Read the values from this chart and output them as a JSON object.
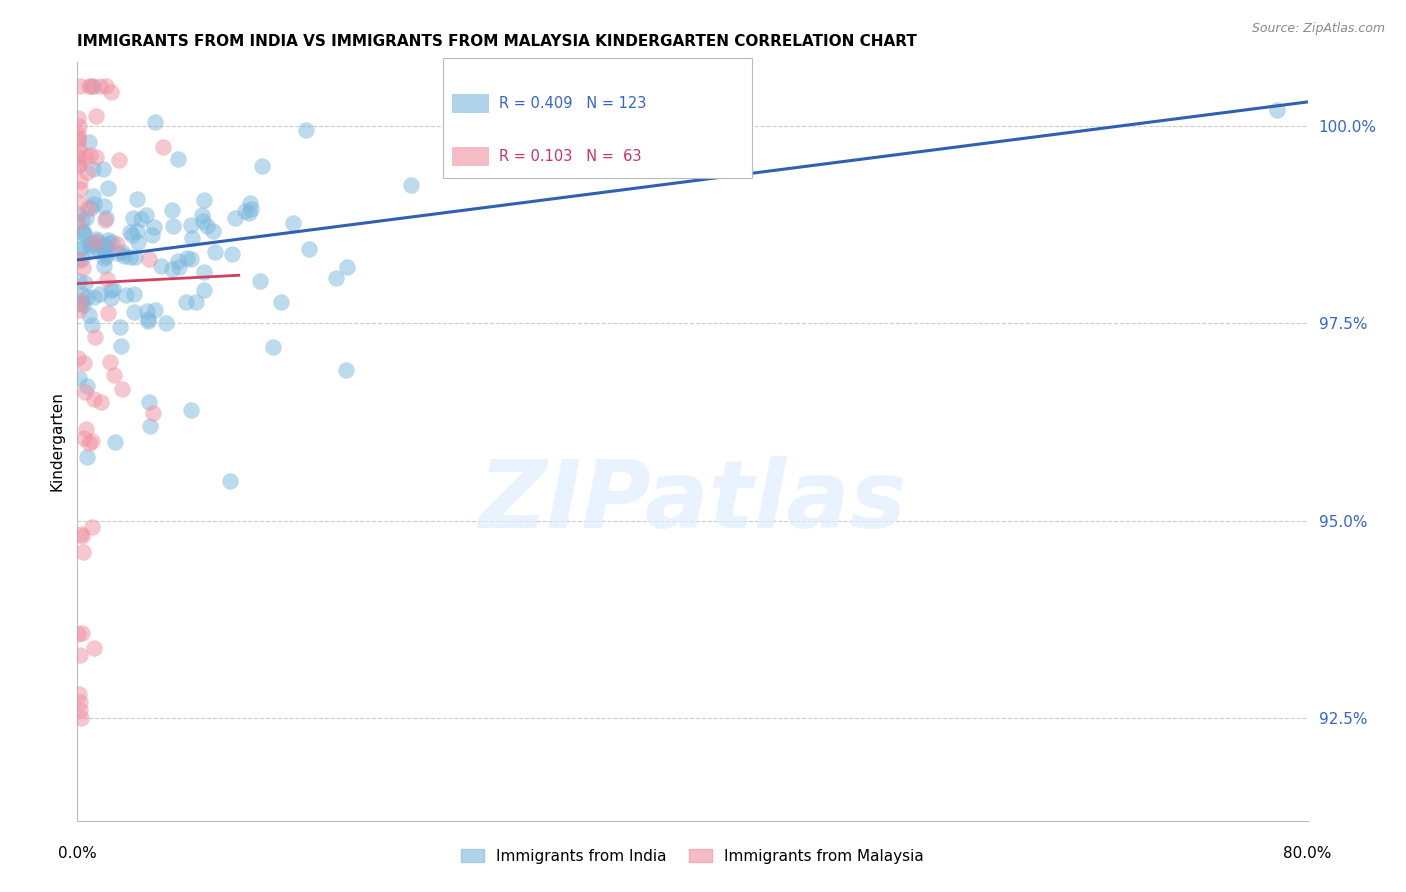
{
  "title": "IMMIGRANTS FROM INDIA VS IMMIGRANTS FROM MALAYSIA KINDERGARTEN CORRELATION CHART",
  "source": "Source: ZipAtlas.com",
  "ylabel": "Kindergarten",
  "yticks": [
    92.5,
    95.0,
    97.5,
    100.0
  ],
  "ytick_labels": [
    "92.5%",
    "95.0%",
    "97.5%",
    "100.0%"
  ],
  "xmin": 0.0,
  "xmax": 80.0,
  "ymin": 91.2,
  "ymax": 100.8,
  "india_color": "#7ab8dd",
  "india_edge_color": "#5a9dc0",
  "malaysia_color": "#f090a0",
  "malaysia_edge_color": "#e06070",
  "india_line_color": "#3060b0",
  "malaysia_line_color": "#d04060",
  "india_R": 0.409,
  "india_N": 123,
  "malaysia_R": 0.103,
  "malaysia_N": 63,
  "india_legend": "Immigrants from India",
  "malaysia_legend": "Immigrants from Malaysia",
  "watermark": "ZIPatlas",
  "legend_R_color": "#3366cc",
  "legend_malaysia_R_color": "#cc3366",
  "ytick_color": "#3366cc"
}
